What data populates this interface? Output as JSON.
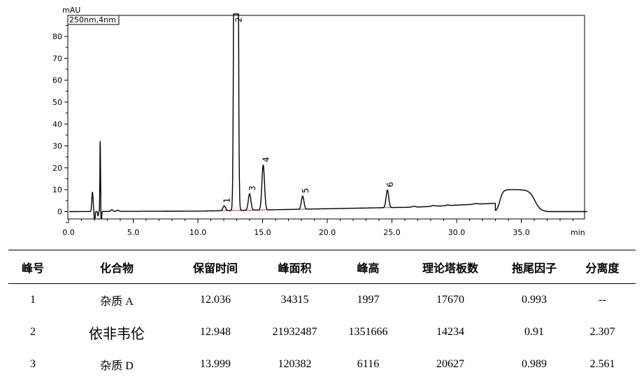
{
  "chart_data": {
    "type": "line",
    "x_unit": "min",
    "y_unit": "mAU",
    "detector_label": "250nm,4nm",
    "xlim": [
      0,
      40.2
    ],
    "ylim": [
      -5,
      88
    ],
    "x_ticks": [
      0,
      5,
      10,
      15,
      20,
      25,
      30,
      35
    ],
    "x_tick_labels": [
      "0.0",
      "5.0",
      "10.0",
      "15.0",
      "20.0",
      "25.0",
      "30.0",
      "35.0"
    ],
    "y_ticks": [
      0,
      10,
      20,
      30,
      40,
      50,
      60,
      70,
      80
    ],
    "y_tick_labels": [
      "0",
      "10",
      "20",
      "30",
      "40",
      "50",
      "60",
      "70",
      "80"
    ],
    "trace_color": "#000000",
    "baseline_color": "#e03030",
    "peaks": [
      {
        "label": "1",
        "rt": 12.036,
        "height": 2.2
      },
      {
        "label": "2",
        "rt": 12.948,
        "height": 1000
      },
      {
        "label": "3",
        "rt": 13.999,
        "height": 7.5
      },
      {
        "label": "4",
        "rt": 15.05,
        "height": 20.5
      },
      {
        "label": "5",
        "rt": 18.1,
        "height": 6.0
      },
      {
        "label": "6",
        "rt": 24.65,
        "height": 8.0
      }
    ]
  },
  "table": {
    "headers": [
      "峰号",
      "化合物",
      "保留时间",
      "峰面积",
      "峰高",
      "理论塔板数",
      "拖尾因子",
      "分离度"
    ],
    "rows": [
      [
        "1",
        "杂质 A",
        "12.036",
        "34315",
        "1997",
        "17670",
        "0.993",
        "--"
      ],
      [
        "2",
        "依非韦伦",
        "12.948",
        "21932487",
        "1351666",
        "14234",
        "0.91",
        "2.307"
      ],
      [
        "3",
        "杂质 D",
        "13.999",
        "120382",
        "6116",
        "20627",
        "0.989",
        "2.561"
      ]
    ]
  }
}
